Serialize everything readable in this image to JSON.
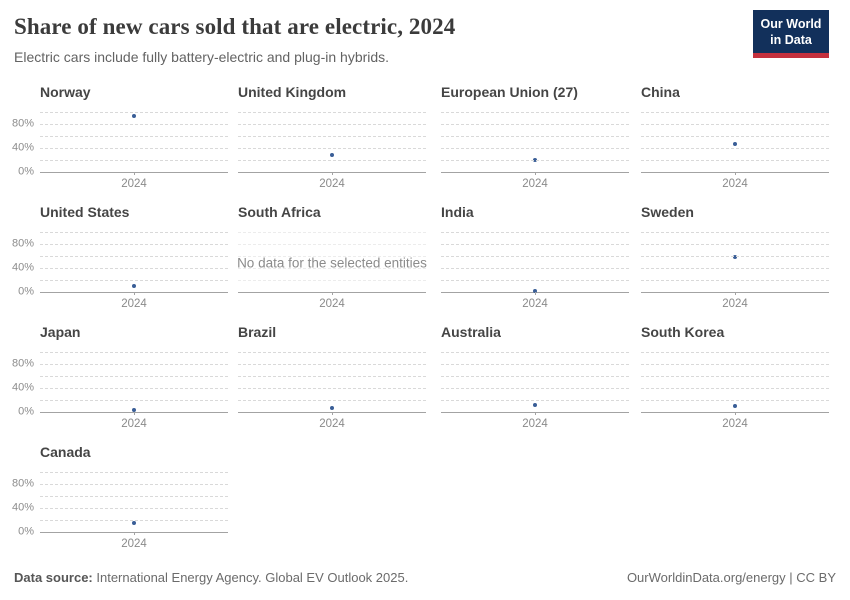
{
  "header": {
    "title": "Share of new cars sold that are electric, 2024",
    "subtitle": "Electric cars include fully battery-electric and plug-in hybrids.",
    "logo": {
      "line1": "Our World",
      "line2": "in Data"
    }
  },
  "chart_data": {
    "type": "scatter",
    "title": "Share of new cars sold that are electric, 2024",
    "unit": "%",
    "x_categories": [
      "2024"
    ],
    "ylim": [
      0,
      100
    ],
    "yticks": [
      0,
      40,
      80
    ],
    "ytick_labels": [
      "0%",
      "40%",
      "80%"
    ],
    "gridlines_pct": [
      20,
      40,
      60,
      80,
      100
    ],
    "grid_style": "dashed",
    "no_data_label": "No data for the selected entities",
    "point_color": "#3a5e97",
    "facets": [
      {
        "title": "Norway",
        "x": "2024",
        "value": 93
      },
      {
        "title": "United Kingdom",
        "x": "2024",
        "value": 28
      },
      {
        "title": "European Union (27)",
        "x": "2024",
        "value": 20
      },
      {
        "title": "China",
        "x": "2024",
        "value": 47
      },
      {
        "title": "United States",
        "x": "2024",
        "value": 10
      },
      {
        "title": "South Africa",
        "x": "2024",
        "value": null
      },
      {
        "title": "India",
        "x": "2024",
        "value": 2
      },
      {
        "title": "Sweden",
        "x": "2024",
        "value": 58
      },
      {
        "title": "Japan",
        "x": "2024",
        "value": 3
      },
      {
        "title": "Brazil",
        "x": "2024",
        "value": 7
      },
      {
        "title": "Australia",
        "x": "2024",
        "value": 12
      },
      {
        "title": "South Korea",
        "x": "2024",
        "value": 10
      },
      {
        "title": "Canada",
        "x": "2024",
        "value": 15
      }
    ]
  },
  "footer": {
    "source_label": "Data source:",
    "source_text": " International Energy Agency. Global EV Outlook 2025.",
    "credit": "OurWorldinData.org/energy | CC BY"
  },
  "colors": {
    "point": "#3a5e97",
    "logo_navy": "#12305b",
    "logo_red": "#c4303d",
    "gridline": "#d9d9d9",
    "axis_line": "#a3a3a3"
  }
}
